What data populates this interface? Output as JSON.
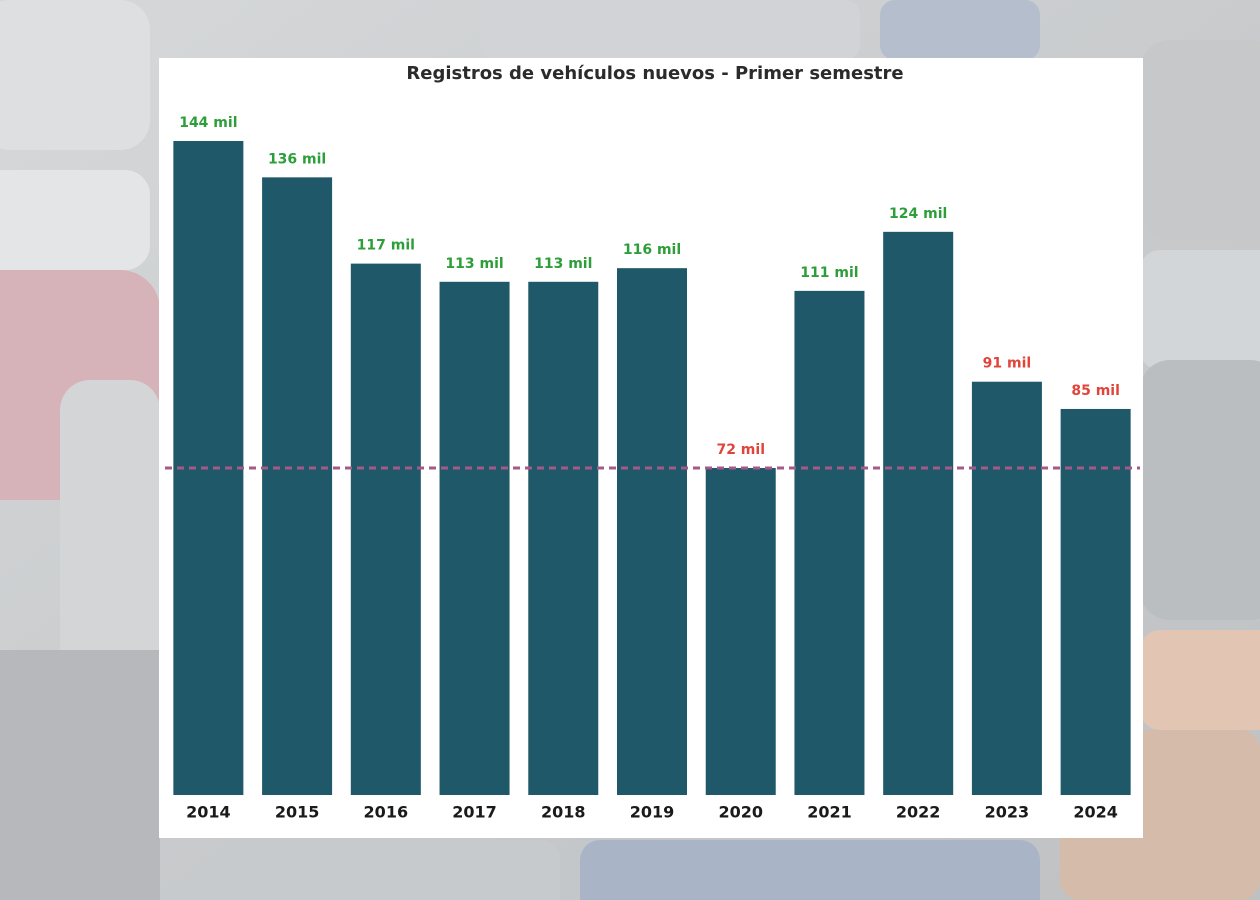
{
  "chart_data": {
    "type": "bar",
    "title": "Registros de vehículos nuevos - Primer semestre",
    "categories": [
      "2014",
      "2015",
      "2016",
      "2017",
      "2018",
      "2019",
      "2020",
      "2021",
      "2022",
      "2023",
      "2024"
    ],
    "values": [
      144,
      136,
      117,
      113,
      113,
      116,
      72,
      111,
      124,
      91,
      85
    ],
    "value_labels": [
      "144 mil",
      "136 mil",
      "117 mil",
      "113 mil",
      "113 mil",
      "116 mil",
      "72 mil",
      "111 mil",
      "124 mil",
      "91 mil",
      "85 mil"
    ],
    "value_label_colors": [
      "#2e9e3a",
      "#2e9e3a",
      "#2e9e3a",
      "#2e9e3a",
      "#2e9e3a",
      "#2e9e3a",
      "#e0443a",
      "#2e9e3a",
      "#2e9e3a",
      "#e0443a",
      "#e0443a"
    ],
    "color": "#1f5868",
    "ylim": [
      0,
      144
    ],
    "reference_line": 72,
    "reference_line_color": "#a35a86"
  }
}
